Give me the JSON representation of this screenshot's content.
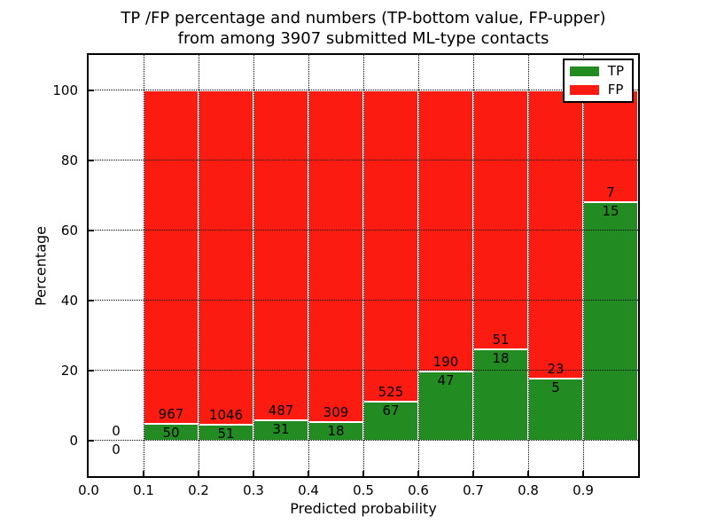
{
  "chart_data": {
    "type": "bar",
    "stacked": true,
    "title_line1": "TP /FP percentage and numbers (TP-bottom value, FP-upper)",
    "title_line2": "from among 3907 submitted ML-type contacts",
    "xlabel": "Predicted probability",
    "ylabel": "Percentage",
    "xlim": [
      0.0,
      1.0
    ],
    "ylim": [
      -10,
      110
    ],
    "xticks": [
      "0.0",
      "0.1",
      "0.2",
      "0.3",
      "0.4",
      "0.5",
      "0.6",
      "0.7",
      "0.8",
      "0.9"
    ],
    "yticks": [
      "0",
      "20",
      "40",
      "60",
      "80",
      "100"
    ],
    "grid": "dotted",
    "total_contacts": 3907,
    "legend": {
      "position": "upper right",
      "entries": [
        {
          "label": "TP",
          "color": "#228b22"
        },
        {
          "label": "FP",
          "color": "#fb1b10"
        }
      ]
    },
    "colors": {
      "tp": "#228b22",
      "fp": "#fb1b10",
      "grid": "#000000",
      "background": "#ffffff"
    },
    "bins": [
      {
        "range": [
          0.0,
          0.1
        ],
        "tp": 0,
        "fp": 0,
        "tp_pct": 0.0,
        "bar": false
      },
      {
        "range": [
          0.1,
          0.2
        ],
        "tp": 50,
        "fp": 967,
        "tp_pct": 4.92,
        "bar": true
      },
      {
        "range": [
          0.2,
          0.3
        ],
        "tp": 51,
        "fp": 1046,
        "tp_pct": 4.65,
        "bar": true
      },
      {
        "range": [
          0.3,
          0.4
        ],
        "tp": 31,
        "fp": 487,
        "tp_pct": 5.99,
        "bar": true
      },
      {
        "range": [
          0.4,
          0.5
        ],
        "tp": 18,
        "fp": 309,
        "tp_pct": 5.5,
        "bar": true
      },
      {
        "range": [
          0.5,
          0.6
        ],
        "tp": 67,
        "fp": 525,
        "tp_pct": 11.32,
        "bar": true
      },
      {
        "range": [
          0.6,
          0.7
        ],
        "tp": 47,
        "fp": 190,
        "tp_pct": 19.83,
        "bar": true
      },
      {
        "range": [
          0.7,
          0.8
        ],
        "tp": 18,
        "fp": 51,
        "tp_pct": 26.09,
        "bar": true
      },
      {
        "range": [
          0.8,
          0.9
        ],
        "tp": 5,
        "fp": 23,
        "tp_pct": 17.86,
        "bar": true
      },
      {
        "range": [
          0.9,
          1.0
        ],
        "tp": 15,
        "fp": 7,
        "tp_pct": 68.18,
        "bar": true
      }
    ]
  }
}
